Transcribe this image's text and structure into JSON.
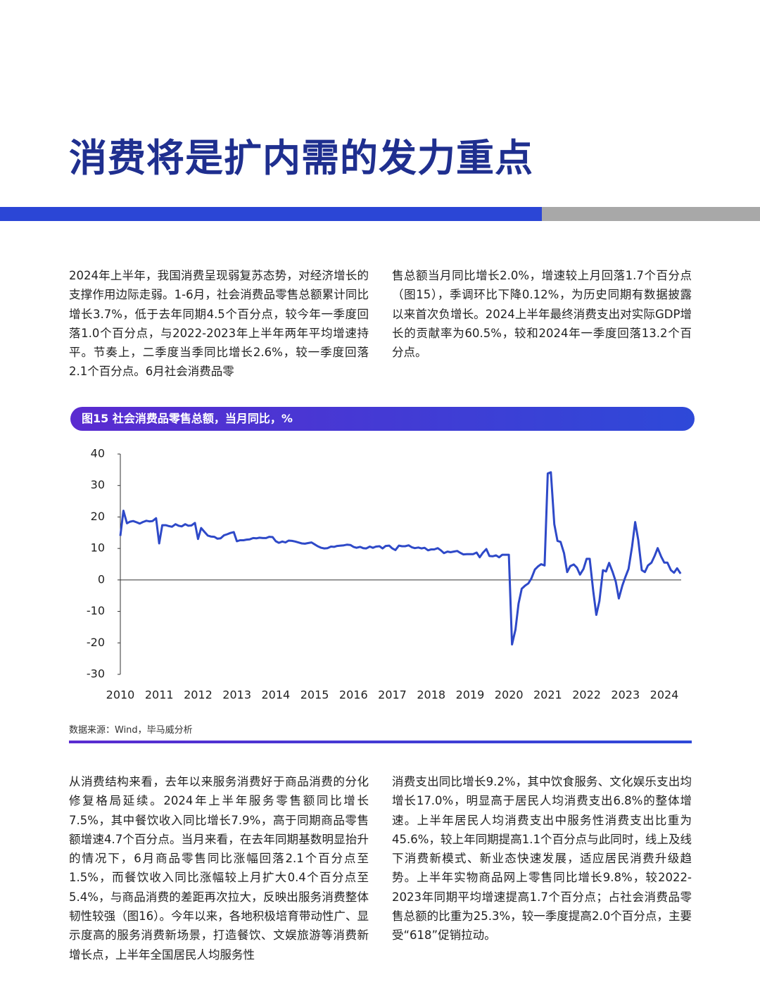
{
  "title": "消费将是扩内需的发力重点",
  "paragraph_1": {
    "left": "2024年上半年，我国消费呈现弱复苏态势，对经济增长的支撑作用边际走弱。1-6月，社会消费品零售总额累计同比增长3.7%，低于去年同期4.5个百分点，较今年一季度回落1.0个百分点，与2022-2023年上半年两年平均增速持平。节奏上，二季度当季同比增长2.6%，较一季度回落2.1个百分点。6月社会消费品零",
    "right": "售总额当月同比增长2.0%，增速较上月回落1.7个百分点（图15），季调环比下降0.12%，为历史同期有数据披露以来首次负增长。2024上半年最终消费支出对实际GDP增长的贡献率为60.5%，较和2024年一季度回落13.2个百分点。"
  },
  "chart_data": {
    "type": "line",
    "title": "图15 社会消费品零售总额，当月同比，%",
    "source": "数据来源：Wind，毕马威分析",
    "color": "#2e49c8",
    "ylim": [
      -30,
      40
    ],
    "yticks": [
      40,
      30,
      20,
      10,
      0,
      -10,
      -20,
      -30
    ],
    "xlim": [
      2010,
      2024
    ],
    "xticks": [
      2010,
      2011,
      2012,
      2013,
      2014,
      2015,
      2016,
      2017,
      2018,
      2019,
      2020,
      2021,
      2022,
      2023,
      2024
    ],
    "series": [
      {
        "x": [
          2010,
          2010.08,
          2010.17,
          2010.25,
          2010.33,
          2010.42,
          2010.5,
          2010.58,
          2010.67,
          2010.75,
          2010.83,
          2010.92,
          2011,
          2011.08,
          2011.17,
          2011.25,
          2011.33,
          2011.42,
          2011.5,
          2011.58,
          2011.67,
          2011.75,
          2011.83,
          2011.92,
          2012,
          2012.08,
          2012.17,
          2012.25,
          2012.33,
          2012.42,
          2012.5,
          2012.58,
          2012.67,
          2012.75,
          2012.83,
          2012.92,
          2013,
          2013.08,
          2013.17,
          2013.25,
          2013.33,
          2013.42,
          2013.5,
          2013.58,
          2013.67,
          2013.75,
          2013.83,
          2013.92,
          2014,
          2014.08,
          2014.17,
          2014.25,
          2014.33,
          2014.42,
          2014.5,
          2014.58,
          2014.67,
          2014.75,
          2014.83,
          2014.92,
          2015,
          2015.08,
          2015.17,
          2015.25,
          2015.33,
          2015.42,
          2015.5,
          2015.58,
          2015.67,
          2015.75,
          2015.83,
          2015.92,
          2016,
          2016.08,
          2016.17,
          2016.25,
          2016.33,
          2016.42,
          2016.5,
          2016.58,
          2016.67,
          2016.75,
          2016.83,
          2016.92,
          2017,
          2017.08,
          2017.17,
          2017.25,
          2017.33,
          2017.42,
          2017.5,
          2017.58,
          2017.67,
          2017.75,
          2017.83,
          2017.92,
          2018,
          2018.08,
          2018.17,
          2018.25,
          2018.33,
          2018.42,
          2018.5,
          2018.58,
          2018.67,
          2018.75,
          2018.83,
          2018.92,
          2019,
          2019.08,
          2019.17,
          2019.25,
          2019.33,
          2019.42,
          2019.5,
          2019.58,
          2019.67,
          2019.75,
          2019.83,
          2019.92,
          2020,
          2020.08,
          2020.17,
          2020.25,
          2020.33,
          2020.42,
          2020.5,
          2020.58,
          2020.67,
          2020.75,
          2020.83,
          2020.92,
          2021,
          2021.08,
          2021.17,
          2021.25,
          2021.33,
          2021.42,
          2021.5,
          2021.58,
          2021.67,
          2021.75,
          2021.83,
          2021.92,
          2022,
          2022.08,
          2022.17,
          2022.25,
          2022.33,
          2022.42,
          2022.5,
          2022.58,
          2022.67,
          2022.75,
          2022.83,
          2022.92,
          2023,
          2023.08,
          2023.17,
          2023.25,
          2023.33,
          2023.42,
          2023.5,
          2023.58,
          2023.67,
          2023.75,
          2023.83,
          2023.92,
          2024,
          2024.08,
          2024.17,
          2024.25,
          2024.33,
          2024.42
        ],
        "values": [
          14,
          22,
          18,
          18.5,
          18.7,
          18.3,
          17.9,
          18.4,
          18.8,
          18.6,
          18.7,
          19.6,
          11.6,
          17.4,
          17.4,
          17.1,
          16.9,
          17.7,
          17.2,
          17,
          17.7,
          17.2,
          17.3,
          18.1,
          13,
          16.5,
          15.2,
          14.1,
          13.8,
          13.7,
          13.1,
          13.2,
          14.2,
          14.5,
          14.9,
          15.2,
          12.3,
          12.6,
          12.6,
          12.8,
          12.9,
          13.3,
          13.2,
          13.4,
          13.3,
          13.3,
          13.7,
          13.6,
          12.3,
          11.8,
          12.2,
          11.9,
          12.5,
          12.4,
          12.2,
          11.9,
          11.6,
          11.5,
          11.7,
          11.9,
          11.3,
          10.7,
          10.2,
          10,
          10.1,
          10.6,
          10.5,
          10.8,
          10.9,
          11,
          11.2,
          11.1,
          10.5,
          10.2,
          10.5,
          10.1,
          10,
          10.6,
          10.2,
          10.6,
          10.7,
          10,
          10.8,
          10.9,
          10,
          9.5,
          10.9,
          10.7,
          10.7,
          11,
          10.4,
          10.1,
          10.3,
          10,
          10.2,
          9.4,
          9.7,
          9.7,
          10.1,
          9.4,
          8.5,
          9,
          8.8,
          9,
          9.2,
          8.6,
          8.1,
          8.2,
          8.2,
          8.2,
          8.7,
          7.2,
          8.6,
          9.8,
          7.6,
          7.5,
          7.8,
          7.2,
          8,
          8,
          8,
          -20.5,
          -15.8,
          -7.5,
          -2.8,
          -1.8,
          -1.1,
          0.5,
          3.3,
          4.3,
          5,
          4.6,
          33.8,
          34.2,
          17.7,
          12.4,
          12.1,
          8.5,
          2.5,
          4.4,
          4.9,
          3.9,
          1.7,
          3.5,
          6.7,
          6.7,
          -3.5,
          -11.1,
          -6.7,
          3.1,
          2.7,
          5.4,
          2.5,
          -0.5,
          -5.9,
          -1.8,
          1,
          3.5,
          10.6,
          18.4,
          12.7,
          3.1,
          2.5,
          4.6,
          5.5,
          7.6,
          10.1,
          7.4,
          5.5,
          5.5,
          3.1,
          2.3,
          3.7,
          2
        ]
      }
    ]
  },
  "paragraph_2": {
    "left": "从消费结构来看，去年以来服务消费好于商品消费的分化修复格局延续。2024年上半年服务零售额同比增长7.5%，其中餐饮收入同比增长7.9%，高于同期商品零售额增速4.7个百分点。当月来看，在去年同期基数明显抬升的情况下，6月商品零售同比涨幅回落2.1个百分点至1.5%，而餐饮收入同比涨幅较上月扩大0.4个百分点至5.4%，与商品消费的差距再次拉大，反映出服务消费整体韧性较强（图16）。今年以来，各地积极培育带动性广、显示度高的服务消费新场景，打造餐饮、文娱旅游等消费新增长点，上半年全国居民人均服务性",
    "right": "消费支出同比增长9.2%，其中饮食服务、文化娱乐支出均增长17.0%，明显高于居民人均消费支出6.8%的整体增速。上半年居民人均消费支出中服务性消费支出比重为45.6%，较上年同期提高1.1个百分点与此同时，线上及线下消费新模式、新业态快速发展，适应居民消费升级趋势。上半年实物商品网上零售同比增长9.8%，较2022-2023年同期平均增速提高1.7个百分点；占社会消费品零售总额的比重为25.3%，较一季度提高2.0个百分点，主要受“618”促销拉动。"
  }
}
